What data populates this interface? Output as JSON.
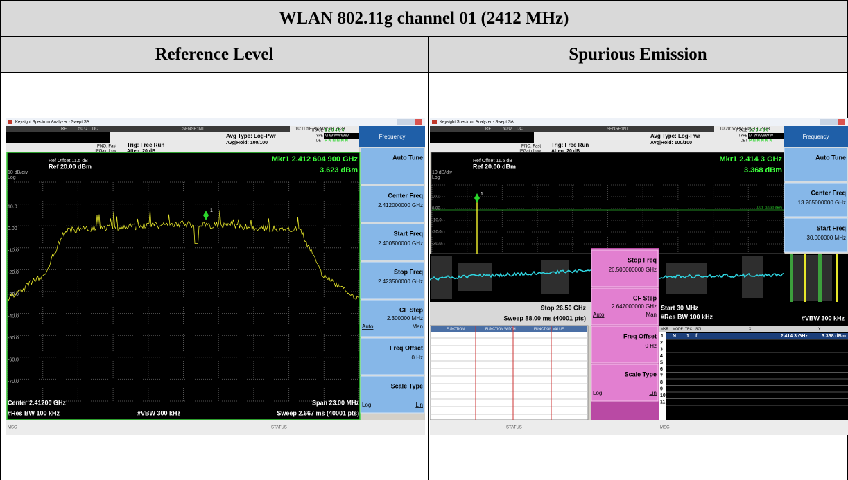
{
  "header": {
    "title": "WLAN 802.11g channel 01 (2412 MHz)",
    "columns": [
      "Reference Level",
      "Spurious Emission"
    ]
  },
  "screens": [
    {
      "window_title": "Keysight Spectrum Analyzer - Swept SA",
      "status_bar": [
        "RF",
        "50 Ω",
        "DC",
        "SENSE:INT",
        "10:11:58 PM May 10, 2023"
      ],
      "settings": [
        "PNO: Fast",
        "IFGain:Low",
        "Trig: Free Run",
        "Atten: 20 dB",
        "Avg Type: Log-Pwr",
        "Avg|Hold: 100/100"
      ],
      "trace_info": [
        "TRACE",
        "TYPE",
        "DET",
        "1 2 3 4 5 6",
        "M WWWWW",
        "P N N N N N"
      ],
      "ref": [
        "Ref Offset 11.5 dB",
        "Ref 20.00 dBm",
        "10 dB/div",
        "Log"
      ],
      "marker": [
        "Mkr1 2.412 604 900 GHz",
        "3.623 dBm",
        "1"
      ],
      "y_labels": [
        "10.0",
        "0.00",
        "-10.0",
        "-20.0",
        "-30.0",
        "-40.0",
        "-50.0",
        "-60.0",
        "-70.0"
      ],
      "footer": [
        "Center 2.41200 GHz",
        "Span 23.00 MHz",
        "#Res BW 100 kHz",
        "#VBW 300 kHz",
        "Sweep  2.667 ms (40001 pts)"
      ],
      "menu": "Frequency",
      "keys": [
        [
          "Auto Tune"
        ],
        [
          "Center Freq",
          "2.412000000 GHz"
        ],
        [
          "Start Freq",
          "2.400500000 GHz"
        ],
        [
          "Stop Freq",
          "2.423500000 GHz"
        ],
        [
          "CF Step",
          "2.300000 MHz",
          "Auto",
          "Man"
        ],
        [
          "Freq Offset",
          "0 Hz"
        ],
        [
          "Scale Type",
          "Log",
          "Lin"
        ]
      ],
      "bottom": [
        "MSG",
        "STATUS"
      ]
    },
    {
      "window_title": "Keysight Spectrum Analyzer - Swept SA",
      "status_bar": [
        "RF",
        "50 Ω",
        "DC",
        "SENSE:INT",
        "10:20:57 PM May 10, 2023"
      ],
      "settings": [
        "PNO: Fast",
        "IFGain:Low",
        "Trig: Free Run",
        "Atten: 20 dB",
        "Avg Type: Log-Pwr",
        "Avg|Hold: 100/100"
      ],
      "trace_info": [
        "TRACE",
        "TYPE",
        "DET",
        "1 2 3 4 5 6",
        "M WWWWW",
        "P N N N N N"
      ],
      "ref": [
        "Ref Offset 11.5 dB",
        "Ref 20.00 dBm",
        "10 dB/div",
        "Log"
      ],
      "marker": [
        "Mkr1 2.414 3 GHz",
        "3.368 dBm",
        "1"
      ],
      "y_labels": [
        "10.0",
        "0.00",
        "-10.0",
        "-20.0",
        "-30.0"
      ],
      "display_line": "DL1 -10.30 dBm",
      "footer_left": [
        "Stop 26.50 GHz",
        "Sweep  88.00 ms (40001 pts)"
      ],
      "footer_right": [
        "Start 30 MHz",
        "#Res BW 100 kHz",
        "#VBW 300 kHz"
      ],
      "menu": "Frequency",
      "keys": [
        [
          "Auto Tune"
        ],
        [
          "Center Freq",
          "13.265000000 GHz"
        ],
        [
          "Start Freq",
          "30.000000 MHz"
        ]
      ],
      "overlay_keys": [
        [
          "Stop Freq",
          "26.500000000 GHz"
        ],
        [
          "CF Step",
          "2.647000000 GHz",
          "Auto",
          "Man"
        ],
        [
          "Freq Offset",
          "0 Hz"
        ],
        [
          "Scale Type",
          "Log",
          "Lin"
        ]
      ],
      "function_table": [
        "FUNCTION",
        "FUNCTION WIDTH",
        "FUNCTION VALUE"
      ],
      "marker_table": {
        "headers": [
          "MKR",
          "MODE",
          "TRC",
          "SCL",
          "X",
          "Y"
        ],
        "row": [
          "1",
          "N",
          "1",
          "f",
          "2.414 3 GHz",
          "3.368 dBm"
        ],
        "row_numbers": [
          "2",
          "3",
          "4",
          "5",
          "6",
          "7",
          "8",
          "9",
          "10",
          "11"
        ]
      },
      "bottom": [
        "MSG",
        "STATUS"
      ]
    }
  ]
}
